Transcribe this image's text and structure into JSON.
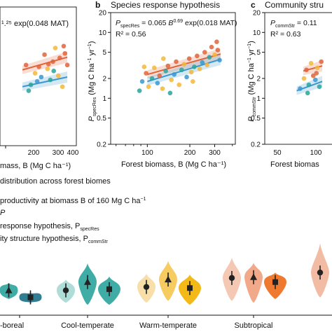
{
  "panels": {
    "b": {
      "letter": "b",
      "title": "Species response hypothesis"
    },
    "c": {
      "letter": "c",
      "title": "Community stru"
    }
  },
  "bottom": {
    "heading": "distribution across forest biomes",
    "productivity_line": "productivity at biomass B of 160 Mg C ha",
    "productivity_sup": "−1",
    "p_line": "P",
    "species_line": "response hypothesis, P",
    "species_sub": "specRes",
    "community_line": "ity structure hypothesis, P",
    "community_sub": "commStr"
  },
  "colors": {
    "orange": "#e0643a",
    "blue": "#3a98cf",
    "teal": "#2aa39b",
    "yellow": "#f2b73a",
    "peach": "#f0a07c"
  },
  "chart_data": [
    {
      "type": "scatter",
      "panel": "a",
      "title": "",
      "equation": "¹.²⁵ exp(0.048 MAT)",
      "xlabel": "mass, B (Mg C ha⁻¹)",
      "x_ticks": [
        "200",
        "300",
        "400"
      ],
      "scale": "log-log",
      "xlim": [
        55,
        420
      ],
      "ylim": [
        0.2,
        20
      ],
      "fits": [
        {
          "color": "#e0643a",
          "x": [
            100,
            330
          ],
          "y": [
            2.7,
            4.2
          ]
        },
        {
          "color": "#3a98cf",
          "x": [
            100,
            330
          ],
          "y": [
            1.5,
            2.1
          ]
        }
      ],
      "points": [
        {
          "x": 110,
          "y": 3.2,
          "c": "#e0643a"
        },
        {
          "x": 125,
          "y": 1.6,
          "c": "#2aa39b"
        },
        {
          "x": 140,
          "y": 2.4,
          "c": "#f2b73a"
        },
        {
          "x": 155,
          "y": 3.0,
          "c": "#e0643a"
        },
        {
          "x": 165,
          "y": 2.1,
          "c": "#3a98cf"
        },
        {
          "x": 180,
          "y": 4.6,
          "c": "#e0643a"
        },
        {
          "x": 195,
          "y": 2.8,
          "c": "#f2b73a"
        },
        {
          "x": 210,
          "y": 1.9,
          "c": "#2aa39b"
        },
        {
          "x": 225,
          "y": 3.6,
          "c": "#e0643a"
        },
        {
          "x": 240,
          "y": 5.8,
          "c": "#f2b73a"
        },
        {
          "x": 260,
          "y": 2.2,
          "c": "#f2b73a"
        },
        {
          "x": 270,
          "y": 4.1,
          "c": "#e0643a"
        },
        {
          "x": 290,
          "y": 1.5,
          "c": "#f2b73a"
        },
        {
          "x": 310,
          "y": 4.8,
          "c": "#e0643a"
        },
        {
          "x": 330,
          "y": 3.2,
          "c": "#e0643a"
        },
        {
          "x": 118,
          "y": 1.3,
          "c": "#2aa39b"
        },
        {
          "x": 148,
          "y": 1.8,
          "c": "#3a98cf"
        },
        {
          "x": 200,
          "y": 3.3,
          "c": "#e0643a"
        },
        {
          "x": 230,
          "y": 2.6,
          "c": "#2aa39b"
        },
        {
          "x": 300,
          "y": 6.2,
          "c": "#e0643a"
        }
      ]
    },
    {
      "type": "scatter",
      "panel": "b",
      "title": "Species response hypothesis",
      "equation": "P_specRes = 0.065 B^0.69 exp(0.018 MAT)",
      "r2": "R² = 0.56",
      "xlabel": "Forest biomass, B (Mg C ha⁻¹)",
      "ylabel": "P_specRes (Mg C ha⁻¹ yr⁻¹)",
      "x_ticks": [
        "100",
        "200",
        "300"
      ],
      "y_ticks": [
        "0.2",
        "0.5",
        "1",
        "2",
        "5",
        "10",
        "20"
      ],
      "scale": "log-log",
      "xlim": [
        55,
        420
      ],
      "ylim": [
        0.2,
        20
      ],
      "fits": [
        {
          "color": "#e0643a",
          "x": [
            100,
            330
          ],
          "y": [
            2.3,
            4.7
          ]
        },
        {
          "color": "#3a98cf",
          "x": [
            100,
            330
          ],
          "y": [
            1.8,
            3.9
          ]
        }
      ],
      "points": [
        {
          "x": 88,
          "y": 1.3,
          "c": "#2aa39b"
        },
        {
          "x": 92,
          "y": 1.8,
          "c": "#3a98cf"
        },
        {
          "x": 98,
          "y": 2.4,
          "c": "#e0643a"
        },
        {
          "x": 102,
          "y": 1.5,
          "c": "#f2b73a"
        },
        {
          "x": 108,
          "y": 2.0,
          "c": "#2aa39b"
        },
        {
          "x": 112,
          "y": 2.9,
          "c": "#f2b73a"
        },
        {
          "x": 118,
          "y": 1.7,
          "c": "#3a98cf"
        },
        {
          "x": 122,
          "y": 2.2,
          "c": "#e0643a"
        },
        {
          "x": 128,
          "y": 1.4,
          "c": "#f2b73a"
        },
        {
          "x": 135,
          "y": 2.6,
          "c": "#2aa39b"
        },
        {
          "x": 140,
          "y": 3.1,
          "c": "#e0643a"
        },
        {
          "x": 148,
          "y": 1.9,
          "c": "#f2b73a"
        },
        {
          "x": 155,
          "y": 2.3,
          "c": "#3a98cf"
        },
        {
          "x": 160,
          "y": 3.6,
          "c": "#e0643a"
        },
        {
          "x": 168,
          "y": 1.6,
          "c": "#f2b73a"
        },
        {
          "x": 175,
          "y": 2.7,
          "c": "#2aa39b"
        },
        {
          "x": 182,
          "y": 3.3,
          "c": "#f2b73a"
        },
        {
          "x": 190,
          "y": 2.1,
          "c": "#3a98cf"
        },
        {
          "x": 198,
          "y": 4.0,
          "c": "#e0643a"
        },
        {
          "x": 205,
          "y": 2.5,
          "c": "#f2b73a"
        },
        {
          "x": 215,
          "y": 3.0,
          "c": "#2aa39b"
        },
        {
          "x": 225,
          "y": 4.4,
          "c": "#e0643a"
        },
        {
          "x": 235,
          "y": 2.8,
          "c": "#f2b73a"
        },
        {
          "x": 245,
          "y": 3.5,
          "c": "#3a98cf"
        },
        {
          "x": 255,
          "y": 5.0,
          "c": "#e0643a"
        },
        {
          "x": 265,
          "y": 3.2,
          "c": "#f2b73a"
        },
        {
          "x": 275,
          "y": 4.2,
          "c": "#2aa39b"
        },
        {
          "x": 285,
          "y": 6.0,
          "c": "#e0643a"
        },
        {
          "x": 300,
          "y": 4.6,
          "c": "#f2b73a"
        },
        {
          "x": 315,
          "y": 5.4,
          "c": "#e0643a"
        },
        {
          "x": 325,
          "y": 3.8,
          "c": "#3a98cf"
        },
        {
          "x": 310,
          "y": 7.2,
          "c": "#e0643a"
        },
        {
          "x": 145,
          "y": 1.2,
          "c": "#2aa39b"
        },
        {
          "x": 95,
          "y": 3.0,
          "c": "#f2b73a"
        },
        {
          "x": 130,
          "y": 4.0,
          "c": "#f2b73a"
        },
        {
          "x": 210,
          "y": 1.8,
          "c": "#f2b73a"
        }
      ]
    },
    {
      "type": "scatter",
      "panel": "c",
      "title": "Community stru",
      "equation": "P_commStr = 0.11",
      "r2": "R² = 0.63",
      "xlabel": "Forest biomas",
      "ylabel": "P_commStr (Mg C ha⁻¹ yr⁻¹)",
      "x_ticks": [
        "50",
        "100"
      ],
      "y_ticks": [
        "0.2",
        "0.5",
        "1",
        "2",
        "5",
        "10",
        "20"
      ],
      "scale": "log-log",
      "xlim": [
        55,
        420
      ],
      "ylim": [
        0.2,
        20
      ],
      "fits": [
        {
          "color": "#e0643a",
          "x": [
            95,
            130
          ],
          "y": [
            2.6,
            3.1
          ]
        },
        {
          "color": "#3a98cf",
          "x": [
            85,
            130
          ],
          "y": [
            1.3,
            1.8
          ]
        }
      ],
      "points": [
        {
          "x": 90,
          "y": 1.4,
          "c": "#3a98cf"
        },
        {
          "x": 96,
          "y": 2.0,
          "c": "#f2b73a"
        },
        {
          "x": 100,
          "y": 2.7,
          "c": "#e0643a"
        },
        {
          "x": 104,
          "y": 1.6,
          "c": "#2aa39b"
        },
        {
          "x": 108,
          "y": 3.4,
          "c": "#f2b73a"
        },
        {
          "x": 112,
          "y": 2.2,
          "c": "#e0643a"
        },
        {
          "x": 116,
          "y": 1.9,
          "c": "#3a98cf"
        },
        {
          "x": 120,
          "y": 2.9,
          "c": "#f2b73a"
        },
        {
          "x": 124,
          "y": 1.5,
          "c": "#2aa39b"
        },
        {
          "x": 128,
          "y": 3.6,
          "c": "#e0643a"
        },
        {
          "x": 102,
          "y": 1.2,
          "c": "#2aa39b"
        },
        {
          "x": 118,
          "y": 2.4,
          "c": "#e0643a"
        }
      ]
    },
    {
      "type": "violin",
      "panel": "d",
      "title": "",
      "groups": [
        {
          "label": "-boreal",
          "items": [
            {
              "marker": "triangle",
              "color": "#2aa39b",
              "median": 2.1,
              "range": [
                1.5,
                2.8
              ]
            },
            {
              "marker": "square",
              "color": "#1b6f86",
              "median": 1.6,
              "range": [
                1.3,
                1.9
              ]
            }
          ]
        },
        {
          "label": "Cool-temperate",
          "items": [
            {
              "marker": "circle",
              "color": "#a5d8d2",
              "median": 2.1,
              "range": [
                1.3,
                3.2
              ]
            },
            {
              "marker": "triangle",
              "color": "#2aa39b",
              "median": 2.9,
              "range": [
                1.2,
                6.0
              ]
            },
            {
              "marker": "square",
              "color": "#2aa39b",
              "median": 2.2,
              "range": [
                1.2,
                3.6
              ]
            }
          ]
        },
        {
          "label": "Warm-temperate",
          "items": [
            {
              "marker": "circle",
              "color": "#f7dca0",
              "median": 2.4,
              "range": [
                1.3,
                4.0
              ]
            },
            {
              "marker": "triangle",
              "color": "#f5c54f",
              "median": 3.2,
              "range": [
                1.4,
                6.6
              ]
            },
            {
              "marker": "square",
              "color": "#f2b100",
              "median": 2.3,
              "range": [
                1.2,
                3.9
              ]
            }
          ]
        },
        {
          "label": "Subtropical",
          "items": [
            {
              "marker": "circle",
              "color": "#f3c2aa",
              "median": 3.4,
              "range": [
                1.4,
                7.5
              ]
            },
            {
              "marker": "triangle",
              "color": "#f0a07c",
              "median": 3.5,
              "range": [
                1.3,
                6.1
              ]
            },
            {
              "marker": "square",
              "color": "#ee6a1a",
              "median": 2.9,
              "range": [
                1.5,
                4.2
              ]
            }
          ]
        },
        {
          "label": "",
          "items": [
            {
              "marker": "circle",
              "color": "#efb49a",
              "median": 4.2,
              "range": [
                1.6,
                13.0
              ]
            }
          ]
        }
      ]
    }
  ]
}
